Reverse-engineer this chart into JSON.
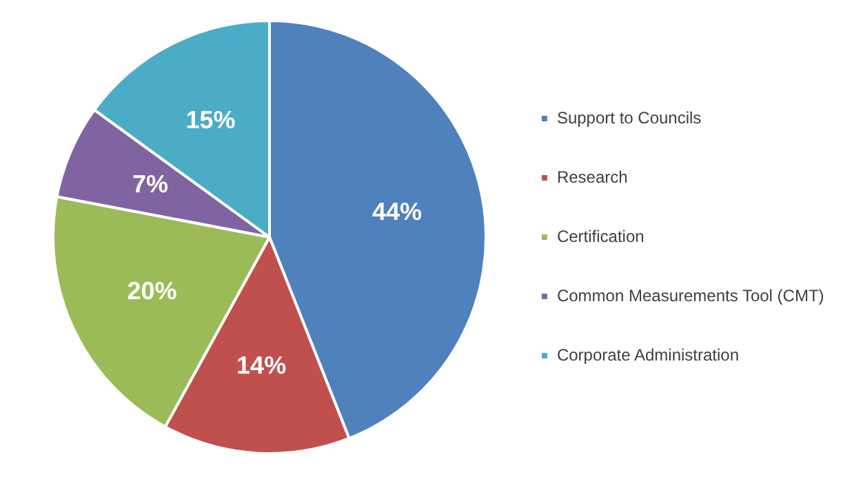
{
  "chart_data": {
    "type": "pie",
    "categories": [
      "Support to Councils",
      "Research",
      "Certification",
      "Common Measurements Tool (CMT)",
      "Corporate Administration"
    ],
    "values": [
      44,
      14,
      20,
      7,
      15
    ],
    "colors": [
      "#4f81bd",
      "#c0504d",
      "#9bbb59",
      "#8064a2",
      "#4bacc6"
    ],
    "value_labels": [
      "44%",
      "14%",
      "20%",
      "7%",
      "15%"
    ],
    "legend": "right"
  }
}
